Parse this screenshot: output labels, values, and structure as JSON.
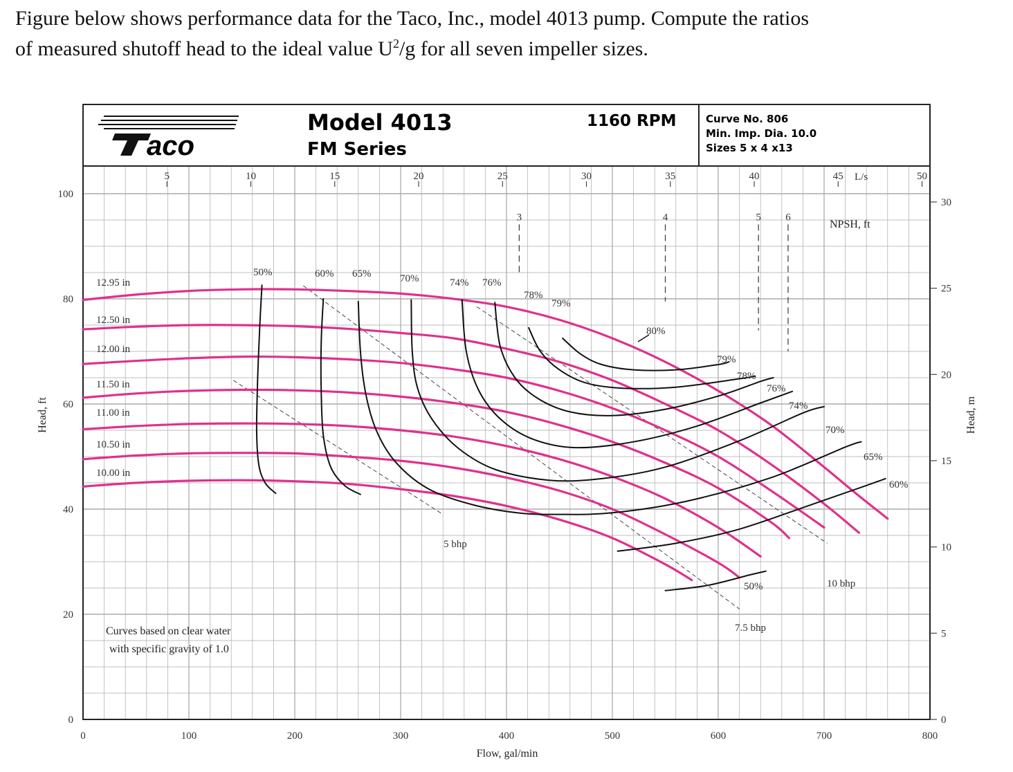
{
  "question": {
    "line1": "Figure below shows performance data for the Taco, Inc., model 4013 pump. Compute the ratios",
    "line2_pre": "of measured shutoff head to the ideal value U",
    "line2_sup": "2",
    "line2_post": "/g for all seven impeller sizes."
  },
  "header": {
    "logo": "aco",
    "model": "Model 4013",
    "series": "FM Series",
    "rpm": "1160 RPM",
    "curve_no": "Curve No. 806",
    "min_imp": "Min. Imp. Dia. 10.0",
    "sizes": "Sizes 5 x 4 x13"
  },
  "colors": {
    "head_curve": "#e0308c",
    "eff_curve": "#111111",
    "grid": "#aaaaaa",
    "frame": "#222222"
  },
  "chart_data": {
    "type": "line",
    "xlabel": "Flow, gal/min",
    "ylabel": "Head, ft",
    "ylabel_right": "Head, m",
    "top_axis_label": "L/s",
    "npsh_label": "NPSH, ft",
    "xlim": [
      0,
      800
    ],
    "ylim": [
      0,
      100
    ],
    "x_ticks": [
      "0",
      "100",
      "200",
      "300",
      "400",
      "500",
      "600",
      "700",
      "800"
    ],
    "y_ticks": [
      "0",
      "20",
      "40",
      "60",
      "80",
      "100"
    ],
    "top_ticks": [
      "5",
      "10",
      "15",
      "20",
      "25",
      "30",
      "35",
      "40",
      "45",
      "50"
    ],
    "right_ticks": [
      "0",
      "5",
      "10",
      "15",
      "20",
      "25",
      "30"
    ],
    "note_line1": "Curves based on clear water",
    "note_line2": "with specific gravity of 1.0",
    "head_curves": [
      {
        "label": "12.95 in",
        "points": [
          [
            0,
            79.8
          ],
          [
            50,
            80.8
          ],
          [
            100,
            81.5
          ],
          [
            150,
            81.8
          ],
          [
            200,
            81.8
          ],
          [
            250,
            81.5
          ],
          [
            300,
            81
          ],
          [
            350,
            80
          ],
          [
            400,
            78.5
          ],
          [
            450,
            76
          ],
          [
            500,
            72.5
          ],
          [
            550,
            68
          ],
          [
            600,
            62.5
          ],
          [
            650,
            56
          ],
          [
            700,
            48
          ],
          [
            730,
            43
          ],
          [
            760,
            38.2
          ]
        ]
      },
      {
        "label": "12.50 in",
        "points": [
          [
            0,
            74.2
          ],
          [
            50,
            74.7
          ],
          [
            100,
            75
          ],
          [
            150,
            75
          ],
          [
            200,
            74.8
          ],
          [
            250,
            74.3
          ],
          [
            300,
            73.5
          ],
          [
            350,
            72.5
          ],
          [
            400,
            70.5
          ],
          [
            450,
            68
          ],
          [
            500,
            64.5
          ],
          [
            550,
            60
          ],
          [
            600,
            55
          ],
          [
            650,
            48.5
          ],
          [
            700,
            41
          ],
          [
            733,
            35.5
          ]
        ]
      },
      {
        "label": "12.00 in",
        "points": [
          [
            0,
            67.6
          ],
          [
            50,
            68.2
          ],
          [
            100,
            68.7
          ],
          [
            150,
            69
          ],
          [
            200,
            68.9
          ],
          [
            250,
            68.5
          ],
          [
            300,
            67.8
          ],
          [
            350,
            66.6
          ],
          [
            400,
            65
          ],
          [
            450,
            62.5
          ],
          [
            500,
            59.2
          ],
          [
            550,
            55
          ],
          [
            600,
            50
          ],
          [
            650,
            43.5
          ],
          [
            700,
            36.5
          ]
        ]
      },
      {
        "label": "11.50 in",
        "points": [
          [
            0,
            61.2
          ],
          [
            50,
            62
          ],
          [
            100,
            62.5
          ],
          [
            150,
            62.7
          ],
          [
            200,
            62.6
          ],
          [
            250,
            62.2
          ],
          [
            300,
            61.4
          ],
          [
            350,
            60.2
          ],
          [
            400,
            58.5
          ],
          [
            450,
            56
          ],
          [
            500,
            52.8
          ],
          [
            550,
            48.8
          ],
          [
            600,
            44
          ],
          [
            650,
            37.5
          ],
          [
            667,
            34.5
          ]
        ]
      },
      {
        "label": "11.00 in",
        "points": [
          [
            0,
            55.2
          ],
          [
            50,
            55.8
          ],
          [
            100,
            56.2
          ],
          [
            150,
            56.3
          ],
          [
            200,
            56.2
          ],
          [
            250,
            55.8
          ],
          [
            300,
            55
          ],
          [
            350,
            53.8
          ],
          [
            400,
            52
          ],
          [
            450,
            49.5
          ],
          [
            500,
            46.2
          ],
          [
            550,
            42
          ],
          [
            600,
            36.5
          ],
          [
            640,
            31
          ]
        ]
      },
      {
        "label": "10.50 in",
        "points": [
          [
            0,
            49.5
          ],
          [
            50,
            50.2
          ],
          [
            100,
            50.6
          ],
          [
            150,
            50.7
          ],
          [
            200,
            50.6
          ],
          [
            250,
            50
          ],
          [
            300,
            49.2
          ],
          [
            350,
            47.9
          ],
          [
            400,
            46
          ],
          [
            450,
            43.5
          ],
          [
            500,
            40
          ],
          [
            550,
            35.2
          ],
          [
            600,
            29.8
          ],
          [
            620,
            27
          ]
        ]
      },
      {
        "label": "10.00 in",
        "points": [
          [
            0,
            44.3
          ],
          [
            50,
            45
          ],
          [
            100,
            45.4
          ],
          [
            150,
            45.5
          ],
          [
            200,
            45.3
          ],
          [
            250,
            44.8
          ],
          [
            300,
            43.8
          ],
          [
            350,
            42.5
          ],
          [
            400,
            40.6
          ],
          [
            450,
            38
          ],
          [
            500,
            34.5
          ],
          [
            550,
            29.5
          ],
          [
            575,
            26.5
          ]
        ]
      }
    ],
    "efficiency_curves": [
      {
        "label": "50%",
        "points": [
          [
            169,
            82.6
          ],
          [
            167,
            75
          ],
          [
            165,
            65
          ],
          [
            164,
            55
          ],
          [
            166,
            48.5
          ],
          [
            172,
            45
          ],
          [
            182,
            43
          ]
        ]
      },
      {
        "label": "60%",
        "points": [
          [
            227,
            80
          ],
          [
            225,
            72
          ],
          [
            225,
            62
          ],
          [
            227,
            54
          ],
          [
            234,
            48
          ],
          [
            247,
            44.5
          ],
          [
            262,
            42.8
          ]
        ]
      },
      {
        "label": "65%",
        "points": [
          [
            260,
            79.5
          ],
          [
            262,
            70
          ],
          [
            267,
            62
          ],
          [
            277,
            55
          ],
          [
            295,
            49
          ],
          [
            325,
            44
          ],
          [
            365,
            41
          ],
          [
            410,
            39.3
          ],
          [
            450,
            39
          ],
          [
            500,
            39.3
          ],
          [
            570,
            41.5
          ],
          [
            650,
            46
          ],
          [
            720,
            51.8
          ],
          [
            735,
            52.8
          ]
        ]
      },
      {
        "label": "70%",
        "points": [
          [
            310,
            79.8
          ],
          [
            311,
            70
          ],
          [
            316,
            63
          ],
          [
            330,
            57
          ],
          [
            355,
            51.5
          ],
          [
            390,
            47.5
          ],
          [
            440,
            45.5
          ],
          [
            490,
            45.8
          ],
          [
            550,
            48
          ],
          [
            620,
            53
          ],
          [
            680,
            58.3
          ],
          [
            700,
            59.5
          ]
        ]
      },
      {
        "label": "74%",
        "points": [
          [
            358,
            79.8
          ],
          [
            362,
            70
          ],
          [
            374,
            62.5
          ],
          [
            395,
            57
          ],
          [
            425,
            53.3
          ],
          [
            465,
            51.7
          ],
          [
            520,
            52.8
          ],
          [
            580,
            55.8
          ],
          [
            640,
            60.2
          ],
          [
            670,
            62.4
          ]
        ]
      },
      {
        "label": "76%",
        "points": [
          [
            389,
            79.3
          ],
          [
            394,
            71
          ],
          [
            408,
            65
          ],
          [
            430,
            61
          ],
          [
            460,
            58.5
          ],
          [
            500,
            57.8
          ],
          [
            550,
            59
          ],
          [
            600,
            61.5
          ],
          [
            640,
            64.3
          ],
          [
            652,
            65
          ]
        ]
      },
      {
        "label": "78%",
        "points": [
          [
            421,
            74.5
          ],
          [
            432,
            70
          ],
          [
            450,
            66.5
          ],
          [
            475,
            64
          ],
          [
            510,
            63
          ],
          [
            560,
            63.2
          ],
          [
            620,
            64.8
          ],
          [
            635,
            65.3
          ]
        ]
      },
      {
        "label": "79%",
        "points": [
          [
            453,
            72.5
          ],
          [
            470,
            69.5
          ],
          [
            490,
            67.5
          ],
          [
            520,
            66.5
          ],
          [
            560,
            66.5
          ],
          [
            600,
            67.5
          ],
          [
            610,
            68
          ]
        ]
      },
      {
        "label": "50%",
        "points": [
          [
            550,
            24.5
          ],
          [
            590,
            25.5
          ],
          [
            630,
            27.5
          ],
          [
            645,
            28.2
          ]
        ]
      },
      {
        "label": "60%",
        "points": [
          [
            505,
            32
          ],
          [
            560,
            33.5
          ],
          [
            620,
            36.2
          ],
          [
            690,
            41
          ],
          [
            740,
            44.5
          ],
          [
            758,
            45.8
          ]
        ]
      }
    ],
    "eff_labels": [
      "50%",
      "60%",
      "65%",
      "70%",
      "74%",
      "76%",
      "78%",
      "79%",
      "80%",
      "79%",
      "78%",
      "76%",
      "74%",
      "70%",
      "65%",
      "60%",
      "50%"
    ],
    "power_lines": [
      {
        "label": "5 bhp",
        "points": [
          [
            142,
            64.5
          ],
          [
            340,
            39
          ]
        ]
      },
      {
        "label": "7.5 bhp",
        "points": [
          [
            208,
            82.5
          ],
          [
            620,
            21
          ]
        ]
      },
      {
        "label": "10 bhp",
        "points": [
          [
            372,
            78.5
          ],
          [
            703,
            33.5
          ]
        ]
      }
    ],
    "npsh_lines": [
      {
        "label": "3",
        "x": 412,
        "y_top": 96,
        "y_bottom": 84.5
      },
      {
        "label": "4",
        "x": 550,
        "y_top": 96,
        "y_bottom": 79.5
      },
      {
        "label": "5",
        "x": 638,
        "y_top": 96,
        "y_bottom": 74
      },
      {
        "label": "6",
        "x": 666,
        "y_top": 96,
        "y_bottom": 70
      }
    ]
  }
}
